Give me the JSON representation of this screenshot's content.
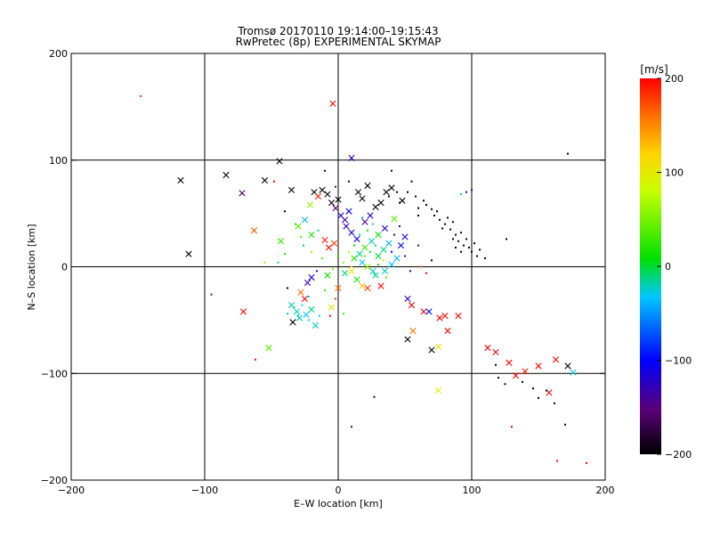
{
  "chart_data": {
    "type": "scatter",
    "title_line1": "Tromsø 20170110 19:14:00–19:15:43",
    "title_line2": "RwPretec (8p) EXPERIMENTAL SKYMAP",
    "xlabel": "E–W location [km]",
    "ylabel": "N–S location [km]",
    "xlim": [
      -200,
      200
    ],
    "ylim": [
      -200,
      200
    ],
    "xticks": [
      -200,
      -100,
      0,
      100,
      200
    ],
    "yticks": [
      -200,
      -100,
      0,
      100,
      200
    ],
    "xtick_labels": [
      "−200",
      "−100",
      "0",
      "100",
      "200"
    ],
    "ytick_labels": [
      "−200",
      "−100",
      "0",
      "100",
      "200"
    ],
    "grid_lines": [
      -100,
      0,
      100
    ],
    "colorbar": {
      "unit_label": "[m/s]",
      "range": [
        -200,
        200
      ],
      "ticks": [
        -200,
        -100,
        0,
        100,
        200
      ],
      "tick_labels": [
        "−200",
        "−100",
        "0",
        "100",
        "200"
      ],
      "colormap": "rainbow: black → purple → blue → cyan → green → yellow → orange → red"
    },
    "marker_legend": "x = large marker, dot = small marker",
    "points": [
      {
        "x": -148,
        "y": 160,
        "v": 180,
        "m": "dot"
      },
      {
        "x": -4,
        "y": 153,
        "v": 200,
        "m": "x"
      },
      {
        "x": 10,
        "y": 102,
        "v": -130,
        "m": "x"
      },
      {
        "x": 172,
        "y": 106,
        "v": -200,
        "m": "dot"
      },
      {
        "x": -118,
        "y": 81,
        "v": -200,
        "m": "x"
      },
      {
        "x": -84,
        "y": 86,
        "v": -200,
        "m": "x"
      },
      {
        "x": -55,
        "y": 81,
        "v": -200,
        "m": "x"
      },
      {
        "x": -44,
        "y": 99,
        "v": -200,
        "m": "x"
      },
      {
        "x": -72,
        "y": 69,
        "v": -160,
        "m": "x"
      },
      {
        "x": -35,
        "y": 72,
        "v": -200,
        "m": "x"
      },
      {
        "x": -112,
        "y": 12,
        "v": -200,
        "m": "x"
      },
      {
        "x": -95,
        "y": -26,
        "v": -140,
        "m": "dot"
      },
      {
        "x": -71,
        "y": -42,
        "v": 200,
        "m": "x"
      },
      {
        "x": -63,
        "y": 34,
        "v": 170,
        "m": "x"
      },
      {
        "x": -62,
        "y": -87,
        "v": 200,
        "m": "dot"
      },
      {
        "x": -52,
        "y": -76,
        "v": 40,
        "m": "x"
      },
      {
        "x": -43,
        "y": 24,
        "v": 30,
        "m": "x"
      },
      {
        "x": -30,
        "y": 38,
        "v": 40,
        "m": "x"
      },
      {
        "x": -25,
        "y": 44,
        "v": -40,
        "m": "x"
      },
      {
        "x": -21,
        "y": 58,
        "v": 60,
        "m": "x"
      },
      {
        "x": -18,
        "y": 70,
        "v": -200,
        "m": "x"
      },
      {
        "x": -15,
        "y": 66,
        "v": 190,
        "m": "x"
      },
      {
        "x": -12,
        "y": 72,
        "v": -200,
        "m": "x"
      },
      {
        "x": -8,
        "y": 68,
        "v": -200,
        "m": "x"
      },
      {
        "x": -5,
        "y": 60,
        "v": -190,
        "m": "x"
      },
      {
        "x": -2,
        "y": 55,
        "v": -150,
        "m": "x"
      },
      {
        "x": 0,
        "y": 63,
        "v": -200,
        "m": "x"
      },
      {
        "x": 2,
        "y": 48,
        "v": -120,
        "m": "x"
      },
      {
        "x": 5,
        "y": 44,
        "v": -130,
        "m": "x"
      },
      {
        "x": 8,
        "y": 52,
        "v": -100,
        "m": "x"
      },
      {
        "x": -20,
        "y": 30,
        "v": 20,
        "m": "x"
      },
      {
        "x": -10,
        "y": 25,
        "v": 190,
        "m": "x"
      },
      {
        "x": -7,
        "y": 18,
        "v": 200,
        "m": "x"
      },
      {
        "x": -3,
        "y": 22,
        "v": 180,
        "m": "x"
      },
      {
        "x": -28,
        "y": -24,
        "v": 160,
        "m": "x"
      },
      {
        "x": -25,
        "y": -30,
        "v": 200,
        "m": "x"
      },
      {
        "x": -23,
        "y": -15,
        "v": -130,
        "m": "x"
      },
      {
        "x": -20,
        "y": -10,
        "v": -110,
        "m": "x"
      },
      {
        "x": -35,
        "y": -36,
        "v": -20,
        "m": "x"
      },
      {
        "x": -31,
        "y": -42,
        "v": -20,
        "m": "x"
      },
      {
        "x": -34,
        "y": -52,
        "v": -200,
        "m": "x"
      },
      {
        "x": -29,
        "y": -48,
        "v": -20,
        "m": "x"
      },
      {
        "x": -24,
        "y": -45,
        "v": -30,
        "m": "x"
      },
      {
        "x": -20,
        "y": -40,
        "v": -10,
        "m": "x"
      },
      {
        "x": -17,
        "y": -55,
        "v": -20,
        "m": "x"
      },
      {
        "x": -38,
        "y": -44,
        "v": -30,
        "m": "dot"
      },
      {
        "x": -33,
        "y": -38,
        "v": -10,
        "m": "dot"
      },
      {
        "x": -30,
        "y": -46,
        "v": -40,
        "m": "dot"
      },
      {
        "x": -27,
        "y": -36,
        "v": -20,
        "m": "dot"
      },
      {
        "x": -22,
        "y": -50,
        "v": -30,
        "m": "dot"
      },
      {
        "x": -5,
        "y": -38,
        "v": 110,
        "m": "x"
      },
      {
        "x": 0,
        "y": -20,
        "v": 160,
        "m": "x"
      },
      {
        "x": -8,
        "y": -8,
        "v": 10,
        "m": "x"
      },
      {
        "x": 5,
        "y": -6,
        "v": -10,
        "m": "x"
      },
      {
        "x": 10,
        "y": -4,
        "v": 100,
        "m": "x"
      },
      {
        "x": 14,
        "y": -12,
        "v": 20,
        "m": "x"
      },
      {
        "x": 18,
        "y": -18,
        "v": 130,
        "m": "x"
      },
      {
        "x": 22,
        "y": -20,
        "v": 180,
        "m": "x"
      },
      {
        "x": 28,
        "y": -8,
        "v": -10,
        "m": "x"
      },
      {
        "x": 32,
        "y": -18,
        "v": 200,
        "m": "x"
      },
      {
        "x": 35,
        "y": -4,
        "v": -20,
        "m": "x"
      },
      {
        "x": 40,
        "y": 2,
        "v": -30,
        "m": "x"
      },
      {
        "x": 44,
        "y": 8,
        "v": -40,
        "m": "x"
      },
      {
        "x": 47,
        "y": 20,
        "v": -100,
        "m": "x"
      },
      {
        "x": 50,
        "y": 28,
        "v": -110,
        "m": "x"
      },
      {
        "x": 42,
        "y": 45,
        "v": 40,
        "m": "x"
      },
      {
        "x": 35,
        "y": 36,
        "v": -120,
        "m": "x"
      },
      {
        "x": 30,
        "y": 30,
        "v": 10,
        "m": "x"
      },
      {
        "x": 25,
        "y": 24,
        "v": -20,
        "m": "x"
      },
      {
        "x": 20,
        "y": 18,
        "v": 30,
        "m": "x"
      },
      {
        "x": 16,
        "y": 12,
        "v": -10,
        "m": "x"
      },
      {
        "x": 12,
        "y": 8,
        "v": 20,
        "m": "x"
      },
      {
        "x": 18,
        "y": 4,
        "v": -30,
        "m": "x"
      },
      {
        "x": 22,
        "y": 0,
        "v": 60,
        "m": "x"
      },
      {
        "x": 26,
        "y": -4,
        "v": -20,
        "m": "x"
      },
      {
        "x": 30,
        "y": 10,
        "v": 0,
        "m": "x"
      },
      {
        "x": 34,
        "y": 16,
        "v": -10,
        "m": "x"
      },
      {
        "x": 38,
        "y": 22,
        "v": -40,
        "m": "x"
      },
      {
        "x": 14,
        "y": 26,
        "v": -110,
        "m": "x"
      },
      {
        "x": 10,
        "y": 32,
        "v": -100,
        "m": "x"
      },
      {
        "x": 6,
        "y": 38,
        "v": -130,
        "m": "x"
      },
      {
        "x": 20,
        "y": 42,
        "v": -140,
        "m": "x"
      },
      {
        "x": 24,
        "y": 48,
        "v": -120,
        "m": "x"
      },
      {
        "x": 28,
        "y": 56,
        "v": -200,
        "m": "x"
      },
      {
        "x": 32,
        "y": 60,
        "v": -200,
        "m": "x"
      },
      {
        "x": 36,
        "y": 70,
        "v": -200,
        "m": "x"
      },
      {
        "x": 40,
        "y": 74,
        "v": -200,
        "m": "x"
      },
      {
        "x": 18,
        "y": 64,
        "v": -190,
        "m": "x"
      },
      {
        "x": 15,
        "y": 70,
        "v": -200,
        "m": "x"
      },
      {
        "x": 22,
        "y": 76,
        "v": -200,
        "m": "x"
      },
      {
        "x": 48,
        "y": 62,
        "v": -200,
        "m": "x"
      },
      {
        "x": 52,
        "y": -30,
        "v": -120,
        "m": "x"
      },
      {
        "x": 55,
        "y": -36,
        "v": 200,
        "m": "x"
      },
      {
        "x": 56,
        "y": -60,
        "v": 160,
        "m": "x"
      },
      {
        "x": 52,
        "y": -68,
        "v": -200,
        "m": "x"
      },
      {
        "x": 64,
        "y": -42,
        "v": 200,
        "m": "x"
      },
      {
        "x": 68,
        "y": -42,
        "v": -100,
        "m": "x"
      },
      {
        "x": 70,
        "y": -78,
        "v": -200,
        "m": "x"
      },
      {
        "x": 76,
        "y": -48,
        "v": 200,
        "m": "x"
      },
      {
        "x": 80,
        "y": -46,
        "v": 200,
        "m": "x"
      },
      {
        "x": 82,
        "y": -60,
        "v": 200,
        "m": "x"
      },
      {
        "x": 75,
        "y": -75,
        "v": 110,
        "m": "x"
      },
      {
        "x": 90,
        "y": -46,
        "v": 200,
        "m": "x"
      },
      {
        "x": 75,
        "y": -116,
        "v": 100,
        "m": "x"
      },
      {
        "x": 112,
        "y": -76,
        "v": 200,
        "m": "x"
      },
      {
        "x": 118,
        "y": -80,
        "v": 200,
        "m": "x"
      },
      {
        "x": 128,
        "y": -90,
        "v": 200,
        "m": "x"
      },
      {
        "x": 133,
        "y": -102,
        "v": 200,
        "m": "x"
      },
      {
        "x": 140,
        "y": -98,
        "v": 190,
        "m": "x"
      },
      {
        "x": 150,
        "y": -93,
        "v": 200,
        "m": "x"
      },
      {
        "x": 158,
        "y": -118,
        "v": 200,
        "m": "x"
      },
      {
        "x": 163,
        "y": -87,
        "v": 200,
        "m": "x"
      },
      {
        "x": 172,
        "y": -93,
        "v": -200,
        "m": "x"
      },
      {
        "x": 176,
        "y": -99,
        "v": -20,
        "m": "x"
      },
      {
        "x": 118,
        "y": -92,
        "v": -200,
        "m": "dot"
      },
      {
        "x": 120,
        "y": -104,
        "v": -200,
        "m": "dot"
      },
      {
        "x": 125,
        "y": -110,
        "v": -200,
        "m": "dot"
      },
      {
        "x": 130,
        "y": -150,
        "v": 200,
        "m": "dot"
      },
      {
        "x": 138,
        "y": -108,
        "v": -200,
        "m": "dot"
      },
      {
        "x": 146,
        "y": -114,
        "v": -200,
        "m": "dot"
      },
      {
        "x": 150,
        "y": -123,
        "v": -200,
        "m": "dot"
      },
      {
        "x": 156,
        "y": -116,
        "v": -200,
        "m": "dot"
      },
      {
        "x": 162,
        "y": -128,
        "v": -200,
        "m": "dot"
      },
      {
        "x": 164,
        "y": -182,
        "v": 200,
        "m": "dot"
      },
      {
        "x": 170,
        "y": -148,
        "v": -200,
        "m": "dot"
      },
      {
        "x": 186,
        "y": -184,
        "v": 200,
        "m": "dot"
      },
      {
        "x": 10,
        "y": -150,
        "v": -140,
        "m": "dot"
      },
      {
        "x": 27,
        "y": -122,
        "v": -200,
        "m": "dot"
      },
      {
        "x": 40,
        "y": 90,
        "v": -200,
        "m": "dot"
      },
      {
        "x": 55,
        "y": 80,
        "v": -200,
        "m": "dot"
      },
      {
        "x": 60,
        "y": 55,
        "v": -200,
        "m": "dot"
      },
      {
        "x": 66,
        "y": 58,
        "v": -200,
        "m": "dot"
      },
      {
        "x": 72,
        "y": 48,
        "v": -200,
        "m": "dot"
      },
      {
        "x": 76,
        "y": 44,
        "v": -200,
        "m": "dot"
      },
      {
        "x": 80,
        "y": 40,
        "v": -200,
        "m": "dot"
      },
      {
        "x": 84,
        "y": 35,
        "v": -200,
        "m": "dot"
      },
      {
        "x": 88,
        "y": 30,
        "v": -200,
        "m": "dot"
      },
      {
        "x": 90,
        "y": 24,
        "v": -200,
        "m": "dot"
      },
      {
        "x": 94,
        "y": 20,
        "v": -200,
        "m": "dot"
      },
      {
        "x": 98,
        "y": 18,
        "v": -200,
        "m": "dot"
      },
      {
        "x": 100,
        "y": 14,
        "v": -200,
        "m": "dot"
      },
      {
        "x": 104,
        "y": 10,
        "v": -200,
        "m": "dot"
      },
      {
        "x": 110,
        "y": 8,
        "v": -200,
        "m": "dot"
      },
      {
        "x": 126,
        "y": 26,
        "v": -200,
        "m": "dot"
      },
      {
        "x": 100,
        "y": 72,
        "v": -160,
        "m": "dot"
      },
      {
        "x": 96,
        "y": 70,
        "v": -100,
        "m": "dot"
      },
      {
        "x": 92,
        "y": 68,
        "v": -10,
        "m": "dot"
      },
      {
        "x": 52,
        "y": 70,
        "v": -200,
        "m": "dot"
      },
      {
        "x": 58,
        "y": 66,
        "v": -200,
        "m": "dot"
      },
      {
        "x": 64,
        "y": 62,
        "v": -200,
        "m": "dot"
      },
      {
        "x": 70,
        "y": 54,
        "v": -200,
        "m": "dot"
      },
      {
        "x": 74,
        "y": 52,
        "v": -200,
        "m": "dot"
      },
      {
        "x": 82,
        "y": 46,
        "v": -200,
        "m": "dot"
      },
      {
        "x": 86,
        "y": 42,
        "v": -200,
        "m": "dot"
      },
      {
        "x": 78,
        "y": 36,
        "v": -200,
        "m": "dot"
      },
      {
        "x": 86,
        "y": 26,
        "v": -200,
        "m": "dot"
      },
      {
        "x": 92,
        "y": 32,
        "v": -200,
        "m": "dot"
      },
      {
        "x": 96,
        "y": 26,
        "v": -200,
        "m": "dot"
      },
      {
        "x": 102,
        "y": 22,
        "v": -200,
        "m": "dot"
      },
      {
        "x": 106,
        "y": 16,
        "v": -200,
        "m": "dot"
      },
      {
        "x": 92,
        "y": 14,
        "v": -200,
        "m": "dot"
      },
      {
        "x": 88,
        "y": 18,
        "v": -200,
        "m": "dot"
      },
      {
        "x": 60,
        "y": 48,
        "v": -200,
        "m": "dot"
      },
      {
        "x": 46,
        "y": 60,
        "v": -200,
        "m": "dot"
      },
      {
        "x": 38,
        "y": 66,
        "v": -200,
        "m": "dot"
      },
      {
        "x": 44,
        "y": 70,
        "v": -200,
        "m": "dot"
      },
      {
        "x": -40,
        "y": 52,
        "v": -200,
        "m": "dot"
      },
      {
        "x": -48,
        "y": 80,
        "v": 200,
        "m": "dot"
      },
      {
        "x": -55,
        "y": 4,
        "v": 60,
        "m": "dot"
      },
      {
        "x": -45,
        "y": 4,
        "v": -20,
        "m": "dot"
      },
      {
        "x": -40,
        "y": 12,
        "v": 20,
        "m": "dot"
      },
      {
        "x": -38,
        "y": -20,
        "v": -200,
        "m": "dot"
      },
      {
        "x": -32,
        "y": 40,
        "v": 30,
        "m": "dot"
      },
      {
        "x": -28,
        "y": 28,
        "v": 40,
        "m": "dot"
      },
      {
        "x": -26,
        "y": 20,
        "v": -40,
        "m": "dot"
      },
      {
        "x": -20,
        "y": 14,
        "v": 60,
        "m": "dot"
      },
      {
        "x": -15,
        "y": 34,
        "v": -10,
        "m": "dot"
      },
      {
        "x": -12,
        "y": 8,
        "v": 40,
        "m": "dot"
      },
      {
        "x": -6,
        "y": -46,
        "v": 200,
        "m": "dot"
      },
      {
        "x": -2,
        "y": -30,
        "v": 180,
        "m": "dot"
      },
      {
        "x": 4,
        "y": -44,
        "v": 30,
        "m": "dot"
      },
      {
        "x": 8,
        "y": 14,
        "v": 60,
        "m": "dot"
      },
      {
        "x": 12,
        "y": 20,
        "v": 20,
        "m": "dot"
      },
      {
        "x": 16,
        "y": 30,
        "v": -20,
        "m": "dot"
      },
      {
        "x": 20,
        "y": 10,
        "v": 40,
        "m": "dot"
      },
      {
        "x": 24,
        "y": 14,
        "v": 0,
        "m": "dot"
      },
      {
        "x": 28,
        "y": 20,
        "v": -10,
        "m": "dot"
      },
      {
        "x": 30,
        "y": 2,
        "v": 20,
        "m": "dot"
      },
      {
        "x": 34,
        "y": 6,
        "v": 80,
        "m": "dot"
      },
      {
        "x": 36,
        "y": -10,
        "v": 40,
        "m": "dot"
      },
      {
        "x": 40,
        "y": 14,
        "v": -110,
        "m": "dot"
      },
      {
        "x": 42,
        "y": 30,
        "v": -120,
        "m": "dot"
      },
      {
        "x": 46,
        "y": 38,
        "v": -130,
        "m": "dot"
      },
      {
        "x": 50,
        "y": 10,
        "v": -120,
        "m": "dot"
      },
      {
        "x": 54,
        "y": -4,
        "v": -110,
        "m": "dot"
      },
      {
        "x": 60,
        "y": 20,
        "v": -140,
        "m": "dot"
      },
      {
        "x": 62,
        "y": 0,
        "v": 170,
        "m": "dot"
      },
      {
        "x": 66,
        "y": -6,
        "v": 200,
        "m": "dot"
      },
      {
        "x": 70,
        "y": 6,
        "v": -200,
        "m": "dot"
      },
      {
        "x": 8,
        "y": 80,
        "v": -200,
        "m": "dot"
      },
      {
        "x": -10,
        "y": 90,
        "v": -200,
        "m": "dot"
      },
      {
        "x": -2,
        "y": 75,
        "v": -150,
        "m": "dot"
      },
      {
        "x": 26,
        "y": 40,
        "v": -30,
        "m": "dot"
      },
      {
        "x": 22,
        "y": 34,
        "v": 20,
        "m": "dot"
      },
      {
        "x": 18,
        "y": 46,
        "v": -40,
        "m": "dot"
      },
      {
        "x": 10,
        "y": 0,
        "v": 100,
        "m": "dot"
      },
      {
        "x": 4,
        "y": 4,
        "v": 60,
        "m": "dot"
      },
      {
        "x": 0,
        "y": 10,
        "v": 30,
        "m": "dot"
      },
      {
        "x": -4,
        "y": -2,
        "v": 50,
        "m": "dot"
      },
      {
        "x": -16,
        "y": -4,
        "v": -120,
        "m": "dot"
      },
      {
        "x": -22,
        "y": -28,
        "v": -30,
        "m": "dot"
      },
      {
        "x": -14,
        "y": -46,
        "v": -30,
        "m": "dot"
      },
      {
        "x": -10,
        "y": -22,
        "v": 20,
        "m": "dot"
      }
    ]
  }
}
